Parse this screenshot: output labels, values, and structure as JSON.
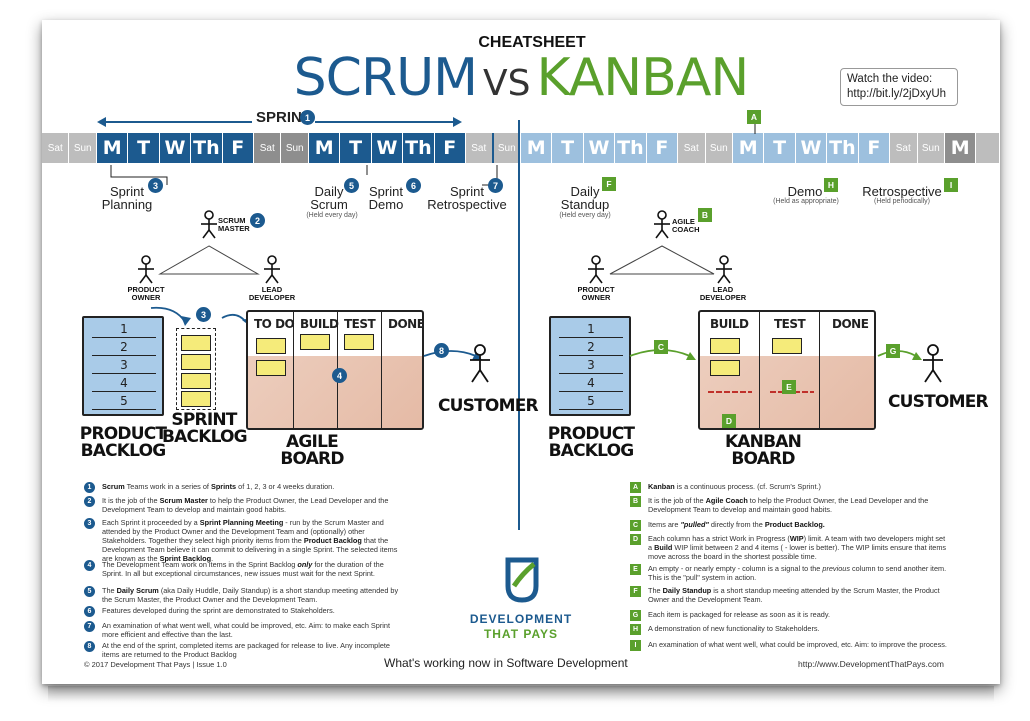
{
  "header": {
    "cheatsheet": "CHEATSHEET",
    "scrum": "SCRUM",
    "vs": "VS",
    "kanban": "KANBAN",
    "video_line1": "Watch the video:",
    "video_line2": "http://bit.ly/2jDxyUh"
  },
  "calendar": {
    "days": [
      "Sat",
      "Sun",
      "M",
      "T",
      "W",
      "Th",
      "F",
      "Sat",
      "Sun",
      "M",
      "T",
      "W",
      "Th",
      "F",
      "Sat",
      "Sun",
      "M",
      "T",
      "W",
      "Th",
      "F",
      "Sat",
      "Sun",
      "M",
      "T",
      "W",
      "Th",
      "F",
      "Sat",
      "Sun",
      "M",
      ""
    ],
    "sprint_label": "SPRINT"
  },
  "scrum": {
    "badges": [
      "1",
      "2",
      "3",
      "4",
      "5",
      "6",
      "7",
      "8"
    ],
    "sprint_planning": "Sprint\nPlanning",
    "daily_scrum": "Daily\nScrum",
    "daily_scrum_sub": "(Held every day)",
    "sprint_demo": "Sprint\nDemo",
    "sprint_retro": "Sprint\nRetrospective",
    "scrum_master": "SCRUM\nMASTER",
    "product_owner": "PRODUCT\nOWNER",
    "lead_developer": "LEAD\nDEVELOPER",
    "product_backlog": "PRODUCT\nBACKLOG",
    "sprint_backlog": "SPRINT\nBACKLOG",
    "agile_board": "AGILE BOARD",
    "customer": "CUSTOMER",
    "columns": [
      "TO DO",
      "BUILD",
      "TEST",
      "DONE"
    ],
    "backlog_rows": [
      "1",
      "2",
      "3",
      "4",
      "5"
    ]
  },
  "kanban": {
    "badges": [
      "A",
      "B",
      "C",
      "D",
      "E",
      "F",
      "G",
      "H",
      "I"
    ],
    "daily_standup": "Daily\nStandup",
    "daily_standup_sub": "(Held every day)",
    "demo": "Demo",
    "demo_sub": "(Held as appropriate)",
    "retro": "Retrospective",
    "retro_sub": "(Held periodically)",
    "agile_coach": "AGILE\nCOACH",
    "product_owner": "PRODUCT\nOWNER",
    "lead_developer": "LEAD\nDEVELOPER",
    "product_backlog": "PRODUCT\nBACKLOG",
    "kanban_board": "KANBAN BOARD",
    "customer": "CUSTOMER",
    "columns": [
      "BUILD",
      "TEST",
      "DONE"
    ],
    "backlog_rows": [
      "1",
      "2",
      "3",
      "4",
      "5"
    ]
  },
  "scrum_legend": [
    {
      "n": "1",
      "html": "<b>Scrum</b> Teams work in a series of <b>Sprints</b> of 1, 2, 3 or 4 weeks duration."
    },
    {
      "n": "2",
      "html": "It is the job of the <b>Scrum Master</b> to help the Product Owner, the Lead Developer and the Development Team to develop and maintain good habits."
    },
    {
      "n": "3",
      "html": "Each Sprint it proceeded by a <b>Sprint Planning Meeting</b> - run by the Scrum Master and attended by the Product Owner and the Development Team and (optionally) other Stakeholders. Together they select high priority items from the <b>Product Backlog</b> that the Development Team believe it can commit to delivering in a single Sprint. The selected items are known as the <b>Sprint Backlog</b>."
    },
    {
      "n": "4",
      "html": "The Development Team work on items in the Sprint Backlog <b><i>only</i></b> for the duration of the Sprint. In all but exceptional circumstances, new issues must wait for the next Sprint."
    },
    {
      "n": "5",
      "html": "The <b>Daily Scrum</b> (aka Daily Huddle, Daily Standup) is a short standup meeting attended by the Scrum Master, the Product Owner and the Development Team."
    },
    {
      "n": "6",
      "html": "Features developed during the sprint are demonstrated to Stakeholders."
    },
    {
      "n": "7",
      "html": "An examination of what went well, what could be improved, etc. Aim: to make each Sprint more efficient and effective than the last."
    },
    {
      "n": "8",
      "html": "At the end of the sprint, completed items are packaged for release to live. Any incomplete items are returned to the Product Backlog"
    }
  ],
  "kanban_legend": [
    {
      "n": "A",
      "html": "<b>Kanban</b> is a continuous process. (cf. Scrum's Sprint.)"
    },
    {
      "n": "B",
      "html": "It is the job of the <b>Agile Coach</b> to help the Product Owner, the Lead Developer and the Development Team to develop and maintain good habits."
    },
    {
      "n": "C",
      "html": "Items are <b><i>\"pulled\"</i></b> directly from the <b>Product Backlog.</b>"
    },
    {
      "n": "D",
      "html": "Each column has a strict Work in Progress (<b>WIP</b>) limit. A team with two developers might set a <b>Build</b> WIP limit between 2 and 4 items ( - lower is better). The WIP limits ensure that items move across the board in the shortest possible time."
    },
    {
      "n": "E",
      "html": "An empty - or nearly empty - column is a signal to the <i>previous</i> column to send another item. This is the \"pull\" system in action."
    },
    {
      "n": "F",
      "html": "The <b>Daily Standup</b> is a short standup meeting attended by the Scrum Master, the Product Owner and the Development Team."
    },
    {
      "n": "G",
      "html": "Each item is packaged for release as soon as it is ready."
    },
    {
      "n": "H",
      "html": "A demonstration of new functionality to Stakeholders."
    },
    {
      "n": "I",
      "html": "An examination of what went well, what could be improved, etc. Aim: to improve the process."
    }
  ],
  "logo": {
    "line1": "DEVELOPMENT",
    "line2": "THAT PAYS"
  },
  "footer": {
    "copyright": "© 2017 Development That Pays | Issue 1.0",
    "tagline": "What's working now in Software Development",
    "url": "http://www.DevelopmentThatPays.com"
  },
  "colors": {
    "scrum_blue": "#1c5a8f",
    "kanban_green": "#5aa02c",
    "sticky_yellow": "#f5eb7a",
    "backlog_blue": "#a9cbe8"
  }
}
